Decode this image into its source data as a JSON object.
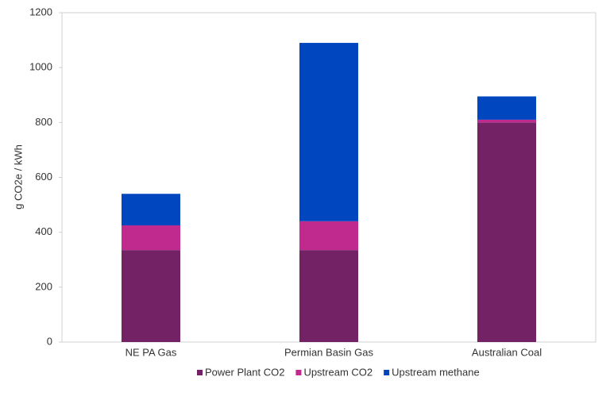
{
  "chart_data": {
    "type": "stacked_bar",
    "y_label": "g CO2e / kWh",
    "categories": [
      "NE PA Gas",
      "Permian Basin Gas",
      "Australian Coal"
    ],
    "series": [
      {
        "name": "Power Plant CO2",
        "color": "#722265",
        "values": [
          335,
          335,
          800
        ]
      },
      {
        "name": "Upstream CO2",
        "color": "#c02a8f",
        "values": [
          90,
          105,
          10
        ]
      },
      {
        "name": "Upstream methane",
        "color": "#0047bf",
        "values": [
          115,
          650,
          85
        ]
      }
    ],
    "ylim": [
      0,
      1200
    ],
    "yticks": [
      0,
      200,
      400,
      600,
      800,
      1000,
      1200
    ],
    "legend": "bottom"
  }
}
